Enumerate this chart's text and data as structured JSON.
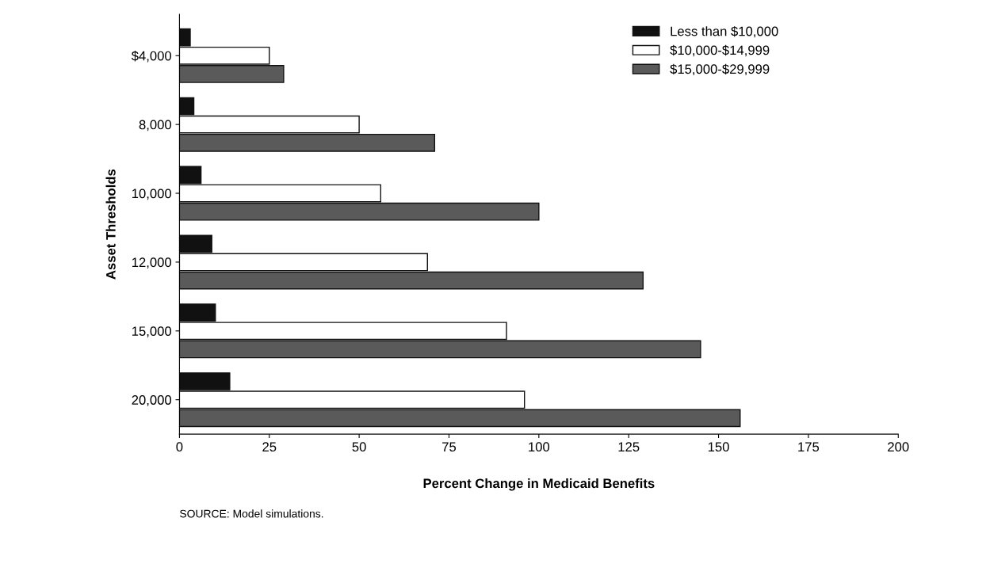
{
  "chart_data": {
    "type": "bar",
    "orientation": "horizontal",
    "categories": [
      "$4,000",
      "8,000",
      "10,000",
      "12,000",
      "15,000",
      "20,000"
    ],
    "series": [
      {
        "name": "Less than $10,000",
        "color": "#111111",
        "values": [
          3,
          4,
          6,
          9,
          10,
          14
        ]
      },
      {
        "name": "$10,000-$14,999",
        "color": "#ffffff",
        "values": [
          25,
          50,
          56,
          69,
          91,
          96
        ]
      },
      {
        "name": "$15,000-$29,999",
        "color": "#5a5a5a",
        "values": [
          29,
          71,
          100,
          129,
          145,
          156
        ]
      }
    ],
    "xlabel": "Percent Change in Medicaid Benefits",
    "ylabel": "Asset Thresholds",
    "xlim": [
      0,
      200
    ],
    "xticks": [
      0,
      25,
      50,
      75,
      100,
      125,
      150,
      175,
      200
    ],
    "legend": "top right",
    "grid": false,
    "annotations": [
      "SOURCE: Model simulations."
    ]
  }
}
